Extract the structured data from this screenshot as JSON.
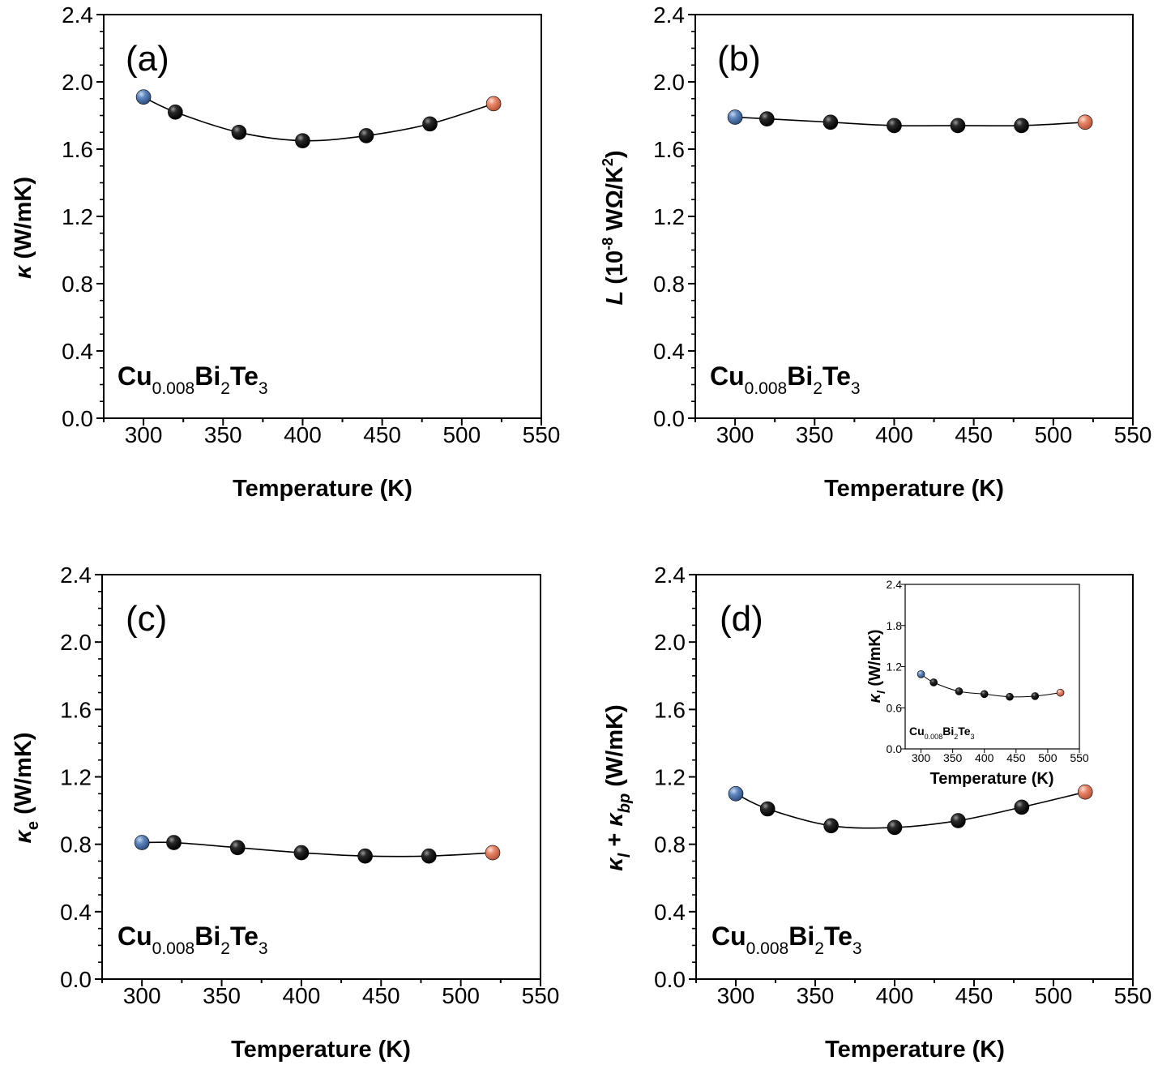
{
  "charts": {
    "a": {
      "panel_label": "(a)",
      "ylabel_sym": "κ",
      "ylabel_rest": " (W/mK)",
      "xlabel": "Temperature (K)",
      "sample": {
        "base1": "Cu",
        "sub1": "0.008",
        "base2": "Bi",
        "sub2": "2",
        "base3": "Te",
        "sub3": "3"
      }
    },
    "b": {
      "panel_label": "(b)",
      "ylabel_sym": "L",
      "ylabel_open": " (10",
      "ylabel_sup": "-8",
      "ylabel_mid": " WΩ/K",
      "ylabel_sup2": "2",
      "ylabel_close": ")",
      "xlabel": "Temperature (K)",
      "sample": {
        "base1": "Cu",
        "sub1": "0.008",
        "base2": "Bi",
        "sub2": "2",
        "base3": "Te",
        "sub3": "3"
      }
    },
    "c": {
      "panel_label": "(c)",
      "ylabel_sym": "κ",
      "ylabel_sub": "e",
      "ylabel_rest": " (W/mK)",
      "xlabel": "Temperature (K)",
      "sample": {
        "base1": "Cu",
        "sub1": "0.008",
        "base2": "Bi",
        "sub2": "2",
        "base3": "Te",
        "sub3": "3"
      }
    },
    "d": {
      "panel_label": "(d)",
      "ylabel_sym1": "κ",
      "ylabel_sub1": "l",
      "ylabel_plus": " + ",
      "ylabel_sym2": "κ",
      "ylabel_sub2": "bp",
      "ylabel_rest": " (W/mK)",
      "xlabel": "Temperature (K)",
      "sample": {
        "base1": "Cu",
        "sub1": "0.008",
        "base2": "Bi",
        "sub2": "2",
        "base3": "Te",
        "sub3": "3"
      }
    },
    "inset": {
      "ylabel_sym": "κ",
      "ylabel_sub": "l",
      "ylabel_rest": " (W/mK)",
      "xlabel": "Temperature (K)",
      "sample": {
        "base1": "Cu",
        "sub1": "0.008",
        "base2": "Bi",
        "sub2": "2",
        "base3": "Te",
        "sub3": "3"
      }
    }
  },
  "chart_data": [
    {
      "id": "a",
      "type": "line",
      "panel": "(a)",
      "xlabel": "Temperature (K)",
      "ylabel": "κ (W/mK)",
      "xlim": [
        275,
        550
      ],
      "ylim": [
        0,
        2.4
      ],
      "xticks": [
        300,
        350,
        400,
        450,
        500,
        550
      ],
      "yticks": [
        0.0,
        0.4,
        0.8,
        1.2,
        1.6,
        2.0,
        2.4
      ],
      "x": [
        300,
        320,
        360,
        400,
        440,
        480,
        520
      ],
      "y": [
        1.91,
        1.82,
        1.7,
        1.65,
        1.68,
        1.75,
        1.87
      ],
      "marker_colors": [
        "#4a6fa5",
        "#111111",
        "#111111",
        "#111111",
        "#111111",
        "#111111",
        "#e07a5a"
      ]
    },
    {
      "id": "b",
      "type": "line",
      "panel": "(b)",
      "xlabel": "Temperature (K)",
      "ylabel": "L (10^-8 WΩ/K^2)",
      "xlim": [
        275,
        550
      ],
      "ylim": [
        0,
        2.4
      ],
      "xticks": [
        300,
        350,
        400,
        450,
        500,
        550
      ],
      "yticks": [
        0.0,
        0.4,
        0.8,
        1.2,
        1.6,
        2.0,
        2.4
      ],
      "x": [
        300,
        320,
        360,
        400,
        440,
        480,
        520
      ],
      "y": [
        1.79,
        1.78,
        1.76,
        1.74,
        1.74,
        1.74,
        1.76
      ],
      "marker_colors": [
        "#4a6fa5",
        "#111111",
        "#111111",
        "#111111",
        "#111111",
        "#111111",
        "#e07a5a"
      ]
    },
    {
      "id": "c",
      "type": "line",
      "panel": "(c)",
      "xlabel": "Temperature (K)",
      "ylabel": "κe (W/mK)",
      "xlim": [
        275,
        550
      ],
      "ylim": [
        0,
        2.4
      ],
      "xticks": [
        300,
        350,
        400,
        450,
        500,
        550
      ],
      "yticks": [
        0.0,
        0.4,
        0.8,
        1.2,
        1.6,
        2.0,
        2.4
      ],
      "x": [
        300,
        320,
        360,
        400,
        440,
        480,
        520
      ],
      "y": [
        0.81,
        0.81,
        0.78,
        0.75,
        0.73,
        0.73,
        0.75
      ],
      "marker_colors": [
        "#4a6fa5",
        "#111111",
        "#111111",
        "#111111",
        "#111111",
        "#111111",
        "#e07a5a"
      ]
    },
    {
      "id": "d",
      "type": "line",
      "panel": "(d)",
      "xlabel": "Temperature (K)",
      "ylabel": "κl + κbp (W/mK)",
      "xlim": [
        275,
        550
      ],
      "ylim": [
        0,
        2.4
      ],
      "xticks": [
        300,
        350,
        400,
        450,
        500,
        550
      ],
      "yticks": [
        0.0,
        0.4,
        0.8,
        1.2,
        1.6,
        2.0,
        2.4
      ],
      "x": [
        300,
        320,
        360,
        400,
        440,
        480,
        520
      ],
      "y": [
        1.1,
        1.01,
        0.91,
        0.9,
        0.94,
        1.02,
        1.11
      ],
      "marker_colors": [
        "#4a6fa5",
        "#111111",
        "#111111",
        "#111111",
        "#111111",
        "#111111",
        "#e07a5a"
      ]
    },
    {
      "id": "inset",
      "type": "line",
      "panel": "(d) inset",
      "xlabel": "Temperature (K)",
      "ylabel": "κl (W/mK)",
      "xlim": [
        275,
        550
      ],
      "ylim": [
        0,
        2.4
      ],
      "xticks": [
        300,
        350,
        400,
        450,
        500,
        550
      ],
      "yticks": [
        0.0,
        0.6,
        1.2,
        1.8,
        2.4
      ],
      "x": [
        300,
        320,
        360,
        400,
        440,
        480,
        520
      ],
      "y": [
        1.09,
        0.97,
        0.84,
        0.8,
        0.76,
        0.77,
        0.82
      ],
      "marker_colors": [
        "#4a6fa5",
        "#111111",
        "#111111",
        "#111111",
        "#111111",
        "#111111",
        "#e07a5a"
      ]
    }
  ]
}
